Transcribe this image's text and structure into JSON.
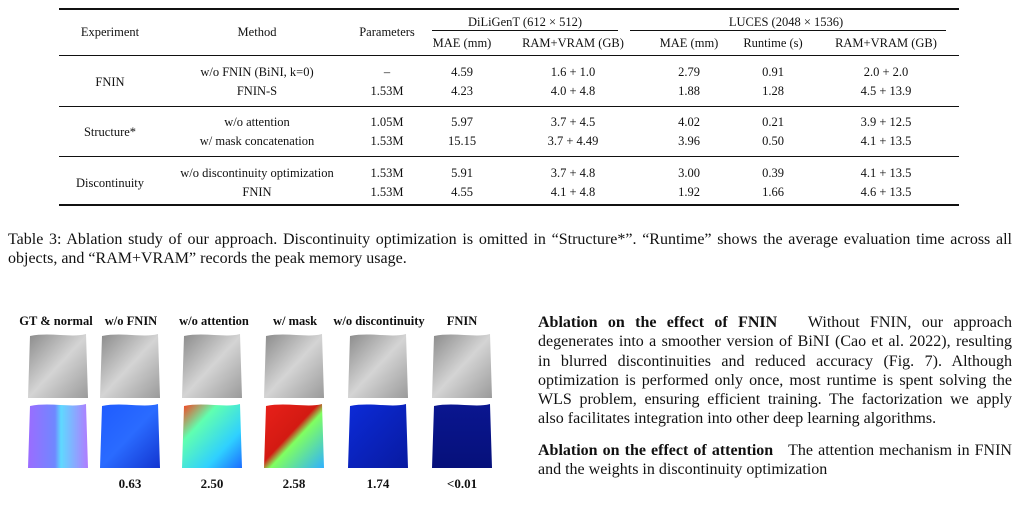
{
  "table": {
    "headers": {
      "experiment": "Experiment",
      "method": "Method",
      "parameters": "Parameters",
      "group1": "DiLiGenT (612 × 512)",
      "group2": "LUCES (2048 × 1536)",
      "g1_mae": "MAE (mm)",
      "g1_mem": "RAM+VRAM (GB)",
      "g2_mae": "MAE (mm)",
      "g2_runtime": "Runtime (s)",
      "g2_mem": "RAM+VRAM (GB)"
    },
    "groups": [
      {
        "name": "FNIN",
        "rows": [
          {
            "method": "w/o FNIN (BiNI, k=0)",
            "params": "–",
            "d_mae": "4.59",
            "d_mem": "1.6 + 1.0",
            "l_mae": "2.79",
            "l_rt": "0.91",
            "l_mem": "2.0 + 2.0"
          },
          {
            "method": "FNIN-S",
            "params": "1.53M",
            "d_mae": "4.23",
            "d_mem": "4.0 + 4.8",
            "l_mae": "1.88",
            "l_rt": "1.28",
            "l_mem": "4.5 + 13.9"
          }
        ]
      },
      {
        "name": "Structure*",
        "rows": [
          {
            "method": "w/o attention",
            "params": "1.05M",
            "d_mae": "5.97",
            "d_mem": "3.7 + 4.5",
            "l_mae": "4.02",
            "l_rt": "0.21",
            "l_mem": "3.9 + 12.5"
          },
          {
            "method": "w/ mask concatenation",
            "params": "1.53M",
            "d_mae": "15.15",
            "d_mem": "3.7 + 4.49",
            "l_mae": "3.96",
            "l_rt": "0.50",
            "l_mem": "4.1 + 13.5"
          }
        ]
      },
      {
        "name": "Discontinuity",
        "rows": [
          {
            "method": "w/o discontinuity optimization",
            "params": "1.53M",
            "d_mae": "5.91",
            "d_mem": "3.7 + 4.8",
            "l_mae": "3.00",
            "l_rt": "0.39",
            "l_mem": "4.1 + 13.5"
          },
          {
            "method": "FNIN",
            "params": "1.53M",
            "d_mae": "4.55",
            "d_mem": "4.1 + 4.8",
            "l_mae": "1.92",
            "l_rt": "1.66",
            "l_mem": "4.6 + 13.5"
          }
        ]
      }
    ]
  },
  "caption": "Table 3: Ablation study of our approach. Discontinuity optimization is omitted in “Structure*”. “Runtime” shows the average evaluation time across all objects, and “RAM+VRAM” records the peak memory usage.",
  "figure": {
    "columns": [
      {
        "label": "GT & normal",
        "value": ""
      },
      {
        "label": "w/o FNIN",
        "value": "0.63"
      },
      {
        "label": "w/o attention",
        "value": "2.50"
      },
      {
        "label": "w/ mask",
        "value": "2.58"
      },
      {
        "label": "w/o discontinuity",
        "value": "1.74"
      },
      {
        "label": "FNIN",
        "value": "<0.01"
      }
    ]
  },
  "paragraphs": [
    {
      "heading": "Ablation on the effect of FNIN",
      "text": "Without FNIN, our approach degenerates into a smoother version of BiNI (Cao et al. 2022), resulting in blurred discontinuities and reduced accuracy (Fig. 7). Although optimization is performed only once, most runtime is spent solving the WLS problem, ensuring efficient training. The factorization we apply also facilitates integration into other deep learning algorithms."
    },
    {
      "heading": "Ablation on the effect of attention",
      "text": "The attention mechanism in FNIN and the weights in discontinuity optimization"
    }
  ]
}
